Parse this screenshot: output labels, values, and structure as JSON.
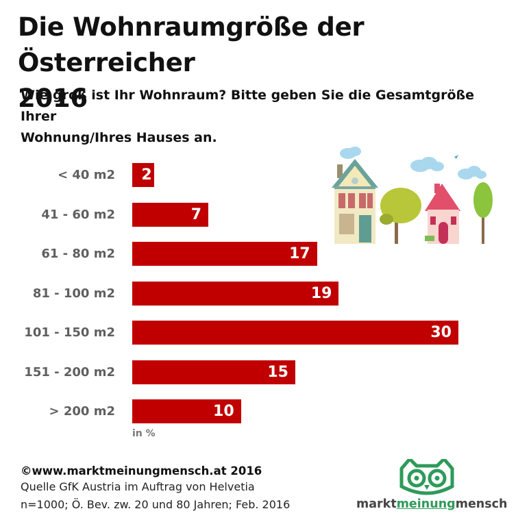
{
  "header": {
    "title_line1": "Die Wohnraumgröße der Österreicher",
    "title_line2": "2016",
    "subtitle_line1": "Wie groß ist Ihr Wohnraum? Bitte geben Sie die Gesamtgröße Ihrer",
    "subtitle_line2": "Wohnung/Ihres Hauses an."
  },
  "chart_data": {
    "type": "bar",
    "orientation": "horizontal",
    "categories": [
      "< 40 m2",
      "41 - 60 m2",
      "61 - 80 m2",
      "81 - 100 m2",
      "101 - 150 m2",
      "151 - 200 m2",
      "> 200 m2"
    ],
    "values": [
      2,
      7,
      17,
      19,
      30,
      15,
      10
    ],
    "unit_label": "in %",
    "xlim": [
      0,
      30
    ],
    "bar_color": "#c00000",
    "grid": false,
    "legend": "none"
  },
  "footer": {
    "copyright": "©www.marktmeinungmensch.at 2016",
    "source_line1": "Quelle GfK Austria im Auftrag von Helvetia",
    "source_line2": "n=1000; Ö. Bev. zw. 20 und 80 Jahren; Feb. 2016"
  },
  "logo": {
    "word1": "markt",
    "word2": "meinung",
    "word3": "mensch",
    "color_dark": "#444444",
    "color_green": "#2e9a5a"
  }
}
